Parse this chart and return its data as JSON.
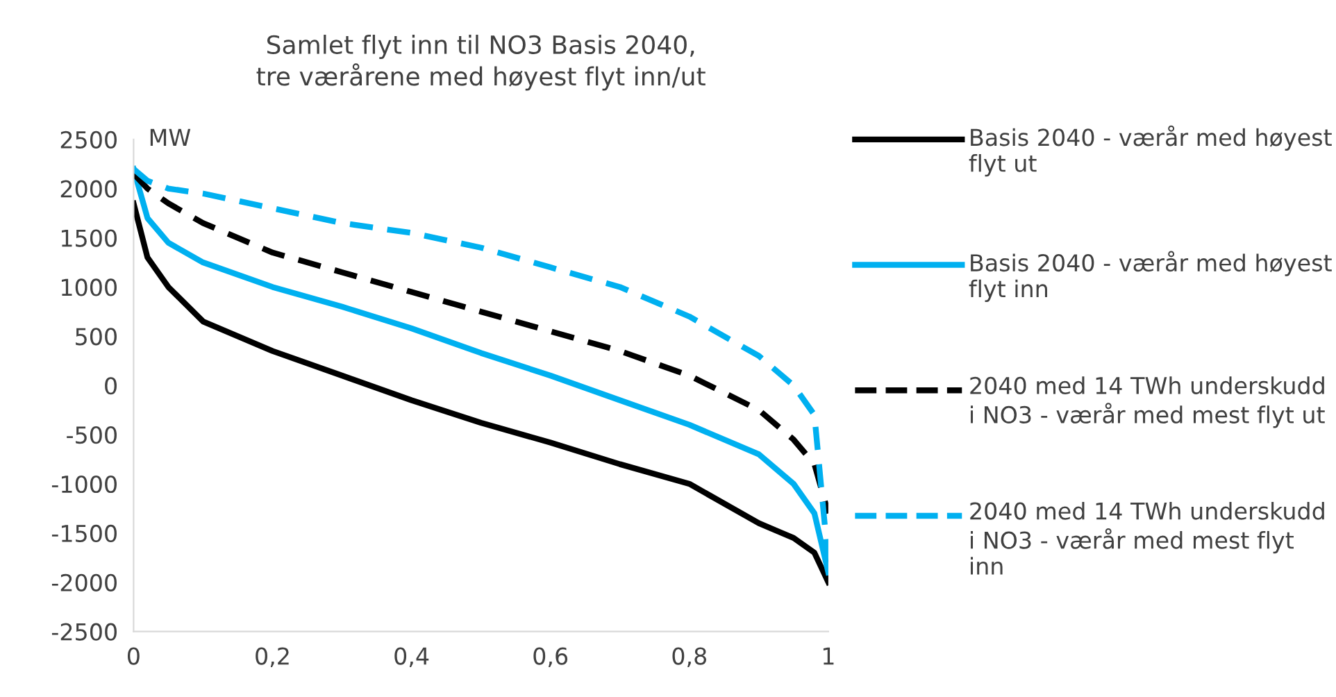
{
  "chart_data": {
    "type": "line",
    "title": "Samlet flyt inn til NO3 Basis 2040,\ntre værårene med høyest flyt inn/ut",
    "ylabel": "MW",
    "x": [
      0,
      0.02,
      0.05,
      0.1,
      0.2,
      0.3,
      0.4,
      0.5,
      0.6,
      0.7,
      0.8,
      0.9,
      0.95,
      0.98,
      1
    ],
    "series": [
      {
        "name": "Basis 2040 - værår med høyest flyt ut",
        "color": "#000000",
        "line_style": "solid",
        "values": [
          1850,
          1300,
          1000,
          650,
          350,
          100,
          -150,
          -380,
          -580,
          -800,
          -1000,
          -1400,
          -1550,
          -1700,
          -2000
        ]
      },
      {
        "name": "Basis 2040 - værår med høyest flyt inn",
        "color": "#00b0f0",
        "line_style": "solid",
        "values": [
          2200,
          1700,
          1450,
          1250,
          1000,
          800,
          580,
          330,
          100,
          -150,
          -400,
          -700,
          -1000,
          -1300,
          -1900
        ]
      },
      {
        "name": "2040 med 14 TWh underskudd i NO3 - værår med mest flyt ut",
        "color": "#000000",
        "line_style": "dashed",
        "values": [
          2150,
          2000,
          1850,
          1650,
          1350,
          1150,
          950,
          750,
          550,
          350,
          100,
          -250,
          -550,
          -800,
          -1300
        ]
      },
      {
        "name": "2040 med 14 TWh underskudd i NO3 - værår med mest flyt inn",
        "color": "#00b0f0",
        "line_style": "dashed",
        "values": [
          2200,
          2080,
          2000,
          1950,
          1800,
          1650,
          1550,
          1400,
          1200,
          1000,
          700,
          300,
          0,
          -300,
          -1800
        ]
      }
    ],
    "xlim": [
      0,
      1
    ],
    "ylim": [
      -2500,
      2500
    ],
    "xticks": [
      {
        "value": 0,
        "label": "0"
      },
      {
        "value": 0.2,
        "label": "0,2"
      },
      {
        "value": 0.4,
        "label": "0,4"
      },
      {
        "value": 0.6,
        "label": "0,6"
      },
      {
        "value": 0.8,
        "label": "0,8"
      },
      {
        "value": 1,
        "label": "1"
      }
    ],
    "yticks": [
      -2500,
      -2000,
      -1500,
      -1000,
      -500,
      0,
      500,
      1000,
      1500,
      2000,
      2500
    ],
    "grid": false,
    "legend": "right"
  }
}
